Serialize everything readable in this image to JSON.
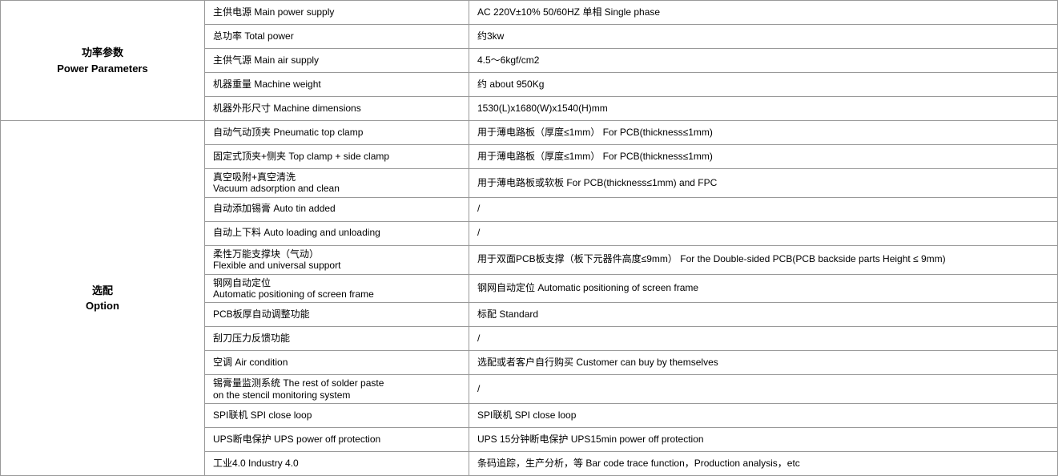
{
  "sections": {
    "power": {
      "header_cn": "功率参数",
      "header_en": "Power Parameters"
    },
    "option": {
      "header_cn": "选配",
      "header_en": "Option"
    }
  },
  "power_rows": [
    {
      "param": "主供电源  Main power supply",
      "value": " AC 220V±10% 50/60HZ 单相 Single phase"
    },
    {
      "param": "总功率  Total power",
      "value": "约3kw"
    },
    {
      "param": "主供气源  Main air supply",
      "value": "4.5～6kgf/cm2"
    },
    {
      "param": "机器重量  Machine weight",
      "value": "约 about 950Kg"
    },
    {
      "param": "机器外形尺寸  Machine dimensions",
      "value": "1530(L)x1680(W)x1540(H)mm"
    }
  ],
  "option_rows": [
    {
      "param": "自动气动顶夹  Pneumatic top clamp",
      "value": "用于薄电路板（厚度≤1mm）  For PCB(thickness≤1mm)"
    },
    {
      "param": "固定式顶夹+侧夹  Top clamp + side clamp",
      "value": "用于薄电路板（厚度≤1mm）  For PCB(thickness≤1mm)"
    },
    {
      "param_line1": "真空吸附+真空清洗",
      "param_line2": "Vacuum adsorption and clean",
      "value": "用于薄电路板或软板   For PCB(thickness≤1mm) and FPC",
      "multiline": true
    },
    {
      "param": "自动添加锡膏  Auto tin added",
      "value": "/"
    },
    {
      "param": "自动上下料  Auto loading and unloading",
      "value": "/"
    },
    {
      "param_line1": "柔性万能支撑块（气动）",
      "param_line2": "Flexible and universal support",
      "value": "用于双面PCB板支撑（板下元器件高度≤9mm）    For the Double-sided PCB(PCB backside parts Height ≤ 9mm)",
      "multiline": true
    },
    {
      "param_line1": "钢网自动定位",
      "param_line2": "Automatic positioning of screen frame",
      "value": "钢网自动定位   Automatic positioning of screen frame",
      "multiline": true
    },
    {
      "param": "PCB板厚自动调整功能",
      "value": "标配 Standard"
    },
    {
      "param": "刮刀压力反馈功能",
      "value": "/"
    },
    {
      "param": "空调  Air condition",
      "value": "选配或者客户自行购买   Customer can buy by themselves"
    },
    {
      "param_line1": "锡膏量监测系统  The rest of solder paste",
      "param_line2": "on the stencil monitoring system",
      "value": "/",
      "multiline": true
    },
    {
      "param": "SPI联机  SPI close loop",
      "value": "SPI联机   SPI close loop"
    },
    {
      "param": "UPS断电保护  UPS power off protection",
      "value": "UPS 15分钟断电保护   UPS15min power off protection"
    },
    {
      "param": "工业4.0  Industry 4.0",
      "value": "条码追踪，生产分析，等   Bar code trace function，Production analysis，etc"
    }
  ]
}
